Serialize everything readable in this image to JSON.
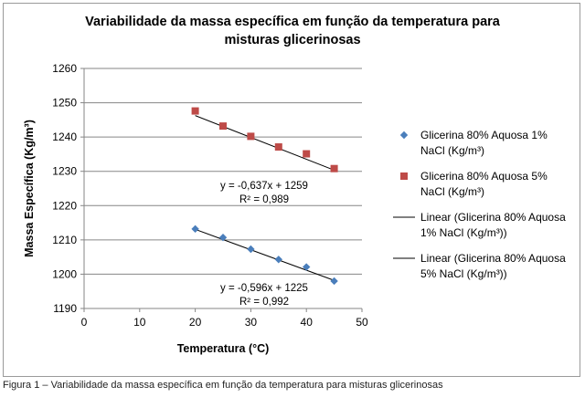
{
  "chart_data": {
    "type": "scatter",
    "title": "Variabilidade da massa específica em função da temperatura para misturas glicerinosas",
    "title_lines": [
      "Variabilidade da massa específica em função da temperatura para",
      "misturas glicerinosas"
    ],
    "xlabel": "Temperatura (°C)",
    "ylabel": "Massa Específica (Kg/m³)",
    "xlim": [
      0,
      50
    ],
    "ylim": [
      1190,
      1260
    ],
    "x_ticks": [
      0,
      10,
      20,
      30,
      40,
      50
    ],
    "y_ticks": [
      1190,
      1200,
      1210,
      1220,
      1230,
      1240,
      1250,
      1260
    ],
    "grid": true,
    "legend_position": "right",
    "series": [
      {
        "name": "Glicerina 80% Aquosa 1% NaCl (Kg/m³)",
        "legend_lines": [
          "Glicerina 80% Aquosa 1%",
          "NaCl (Kg/m³)"
        ],
        "marker": "diamond",
        "color": "#4a7ebb",
        "x": [
          20,
          25,
          30,
          35,
          40,
          45
        ],
        "y": [
          1213.2,
          1210.7,
          1207.3,
          1204.3,
          1202.1,
          1198.0
        ]
      },
      {
        "name": "Glicerina 80% Aquosa 5% NaCl (Kg/m³)",
        "legend_lines": [
          "Glicerina 80% Aquosa 5%",
          "NaCl (Kg/m³)"
        ],
        "marker": "square",
        "color": "#be4b48",
        "x": [
          20,
          25,
          30,
          35,
          40,
          45
        ],
        "y": [
          1247.6,
          1243.2,
          1240.2,
          1237.1,
          1235.1,
          1230.8
        ]
      }
    ],
    "trendlines": [
      {
        "name": "Linear (Glicerina 80% Aquosa 1% NaCl (Kg/m³))",
        "legend_lines": [
          "Linear (Glicerina 80% Aquosa",
          "1% NaCl (Kg/m³))"
        ],
        "slope": -0.596,
        "intercept": 1225,
        "x_range": [
          20,
          45
        ],
        "equation": "y = -0,596x + 1225",
        "r2": "R² = 0,992",
        "color": "#000000"
      },
      {
        "name": "Linear (Glicerina 80% Aquosa 5% NaCl (Kg/m³))",
        "legend_lines": [
          "Linear (Glicerina 80% Aquosa",
          "5% NaCl (Kg/m³))"
        ],
        "slope": -0.637,
        "intercept": 1259,
        "x_range": [
          20,
          45
        ],
        "equation": "y = -0,637x + 1259",
        "r2": "R² = 0,989",
        "color": "#000000"
      }
    ]
  },
  "caption": "Figura 1 – Variabilidade da massa específica em função da temperatura para misturas glicerinosas"
}
